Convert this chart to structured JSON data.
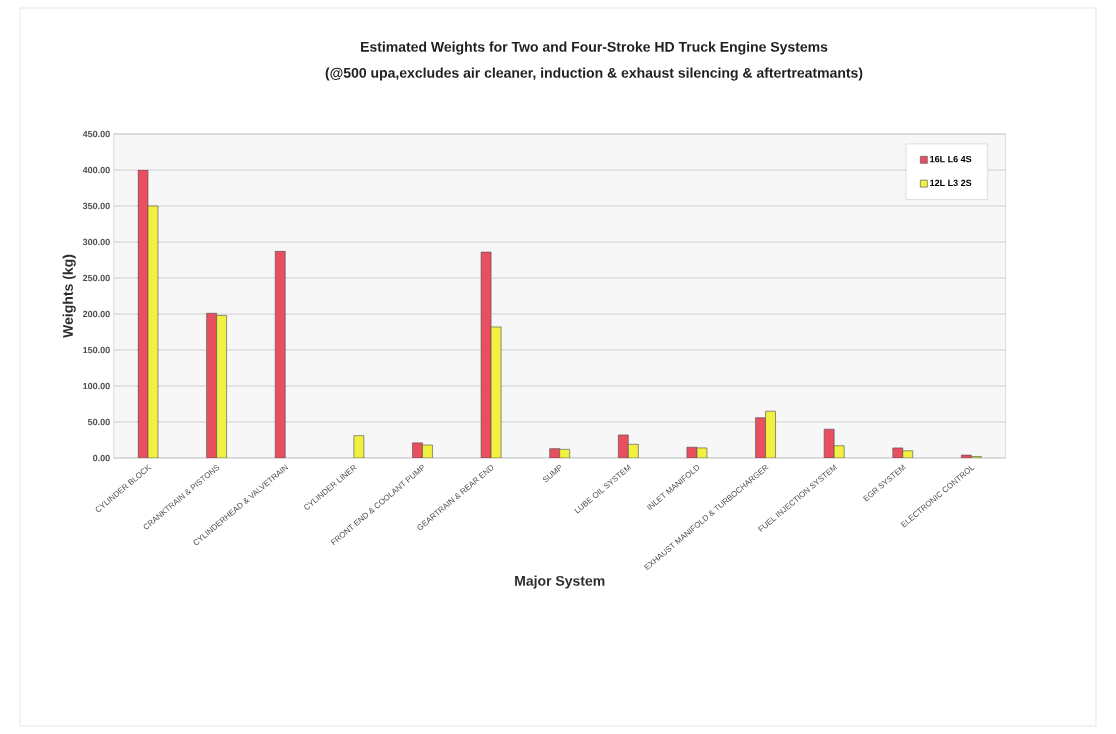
{
  "chart_data": {
    "type": "bar",
    "title": "Estimated Weights for Two and Four-Stroke HD Truck Engine Systems",
    "subtitle": "(@500 upa,excludes air cleaner, induction & exhaust silencing & aftertreatmants)",
    "xlabel": "Major System",
    "ylabel": "Weights (kg)",
    "categories": [
      "CYLINDER  BLOCK",
      "CRANKTRAIN & PISTONS",
      "CYLINDERHEAD & VALVETRAIN",
      "CYLINDER LINER",
      "FRONT END & COOLANT PUMP",
      "GEARTRAIN & REAR END",
      "SUMP",
      "LUBE OIL SYSTEM",
      "INLET  MANIFOLD",
      "EXHAUST MANIFOLD & TURBOCHARGER",
      "FUEL INJECTION SYSTEM",
      "EGR  SYSTEM",
      "ELECTRONIC  CONTROL"
    ],
    "series": [
      {
        "name": "16L L6 4S",
        "color": "#e8505f",
        "values": [
          400,
          201,
          287,
          null,
          21,
          286,
          13,
          32,
          15,
          56,
          40,
          14,
          4
        ]
      },
      {
        "name": "12L L3 2S",
        "color": "#f2f040",
        "values": [
          350,
          198,
          null,
          31,
          18,
          182,
          12,
          19,
          14,
          65,
          17,
          10,
          2
        ]
      }
    ],
    "ylim": [
      0,
      450
    ],
    "yticks": [
      {
        "value": 0,
        "label": "0.00"
      },
      {
        "value": 50,
        "label": "50.00"
      },
      {
        "value": 100,
        "label": "100.00"
      },
      {
        "value": 150,
        "label": "150.00"
      },
      {
        "value": 200,
        "label": "200.00"
      },
      {
        "value": 250,
        "label": "250.00"
      },
      {
        "value": 300,
        "label": "300.00"
      },
      {
        "value": 350,
        "label": "350.00"
      },
      {
        "value": 400,
        "label": "400.00"
      },
      {
        "value": 450,
        "label": "450.00"
      }
    ],
    "grid": "y",
    "legend": "top right"
  }
}
